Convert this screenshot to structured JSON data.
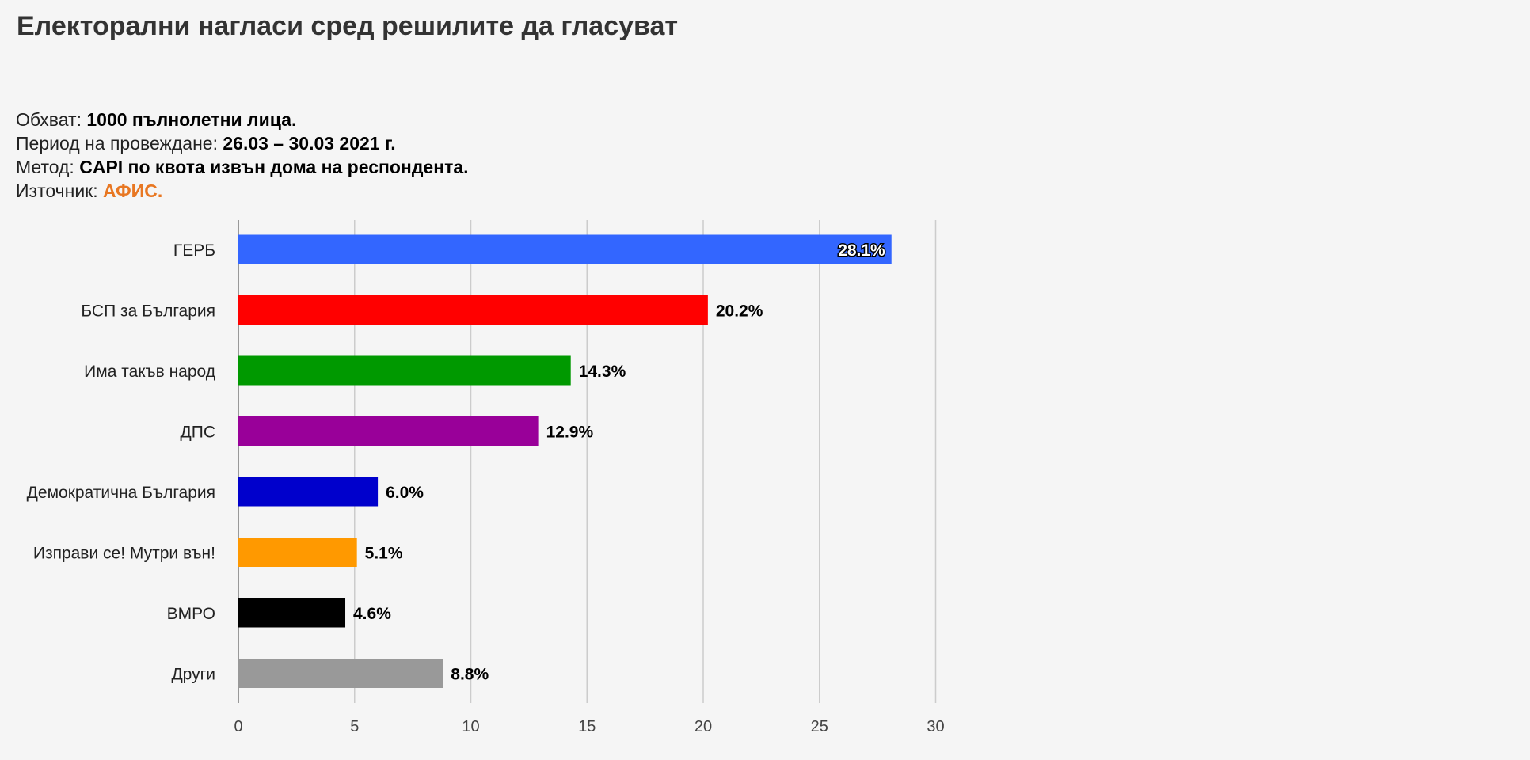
{
  "page": {
    "title": "Електорални нагласи сред решилите да гласуват"
  },
  "meta": {
    "coverage_label": "Обхват:",
    "coverage_value": "1000 пълнолетни лица.",
    "period_label": "Период на провеждане:",
    "period_value": "26.03 – 30.03 2021 г.",
    "method_label": "Метод:",
    "method_value": "CAPI по квота извън дома на респондента.",
    "source_label": "Източник:",
    "source_value": "АФИС.",
    "accent_color": "#e87722"
  },
  "chart_data": {
    "type": "bar",
    "orientation": "horizontal",
    "categories": [
      "ГЕРБ",
      "БСП за България",
      "Има такъв народ",
      "ДПС",
      "Демократична България",
      "Изправи се! Мутри вън!",
      "ВМРО",
      "Други"
    ],
    "values": [
      28.1,
      20.2,
      14.3,
      12.9,
      6.0,
      5.1,
      4.6,
      8.8
    ],
    "value_labels": [
      "28.1%",
      "20.2%",
      "14.3%",
      "12.9%",
      "6.0%",
      "5.1%",
      "4.6%",
      "8.8%"
    ],
    "colors": [
      "#3366ff",
      "#ff0000",
      "#009900",
      "#990099",
      "#0000cc",
      "#ff9900",
      "#000000",
      "#999999"
    ],
    "xlim": [
      0,
      30
    ],
    "xticks": [
      0,
      5,
      10,
      15,
      20,
      25,
      30
    ],
    "grid": true,
    "legend": "none"
  }
}
